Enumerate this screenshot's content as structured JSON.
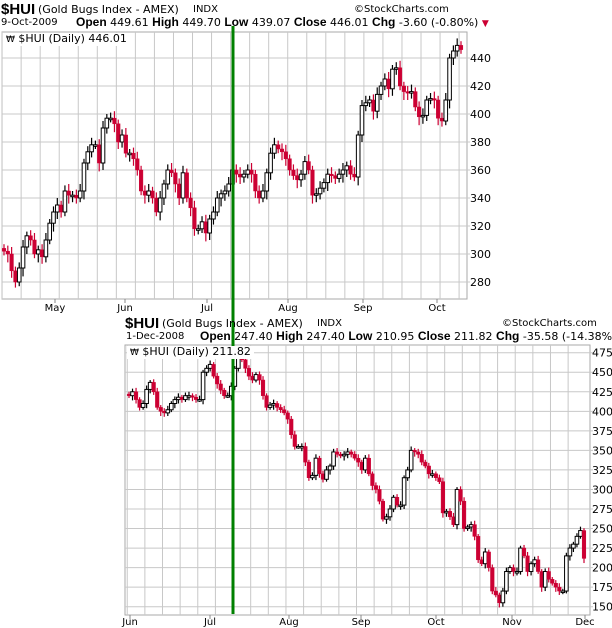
{
  "chart_data": [
    {
      "type": "candlestick",
      "symbol": "$HUI",
      "name": "(Gold Bugs Index - AMEX)",
      "exchange": "INDX",
      "copyright": "©StockCharts.com",
      "date": "9-Oct-2009",
      "quote": {
        "open_label": "Open",
        "open": "449.61",
        "high_label": "High",
        "high": "449.70",
        "low_label": "Low",
        "low": "439.07",
        "close_label": "Close",
        "close": "446.01",
        "chg_label": "Chg",
        "chg": "-3.60 (-0.80%)"
      },
      "legend": "$HUI (Daily) 446.01",
      "x_tick_labels": [
        "May",
        "Jun",
        "Jul",
        "Aug",
        "Sep",
        "Oct"
      ],
      "y_ticks": [
        280,
        300,
        320,
        340,
        360,
        380,
        400,
        420,
        440
      ],
      "ylim": [
        270,
        460
      ],
      "grid": true,
      "closes": [
        302,
        300,
        288,
        280,
        290,
        305,
        313,
        310,
        300,
        303,
        298,
        310,
        322,
        330,
        335,
        330,
        345,
        342,
        342,
        340,
        345,
        365,
        373,
        378,
        378,
        365,
        390,
        397,
        397,
        393,
        380,
        385,
        372,
        372,
        368,
        360,
        345,
        342,
        345,
        340,
        330,
        340,
        350,
        360,
        358,
        350,
        340,
        358,
        340,
        333,
        318,
        318,
        323,
        315,
        325,
        330,
        340,
        343,
        345,
        350,
        360,
        357,
        355,
        357,
        360,
        357,
        345,
        340,
        345,
        358,
        372,
        378,
        375,
        373,
        368,
        360,
        356,
        353,
        357,
        366,
        360,
        342,
        343,
        347,
        351,
        357,
        356,
        354,
        357,
        360,
        363,
        357,
        355,
        385,
        406,
        408,
        410,
        402,
        414,
        420,
        425,
        418,
        432,
        433,
        420,
        416,
        415,
        416,
        405,
        398,
        399,
        410,
        411,
        410,
        397,
        395,
        410,
        440,
        445,
        449,
        446
      ]
    },
    {
      "type": "candlestick",
      "symbol": "$HUI",
      "name": "(Gold Bugs Index - AMEX)",
      "exchange": "INDX",
      "copyright": "©StockCharts.com",
      "date": "1-Dec-2008",
      "quote": {
        "open_label": "Open",
        "open": "247.40",
        "high_label": "High",
        "high": "247.40",
        "low_label": "Low",
        "low": "210.95",
        "close_label": "Close",
        "close": "211.82",
        "chg_label": "Chg",
        "chg": "-35.58 (-14.38%)"
      },
      "legend": "$HUI (Daily) 211.82",
      "x_tick_labels": [
        "Jun",
        "Jul",
        "Aug",
        "Sep",
        "Oct",
        "Nov",
        "Dec"
      ],
      "y_ticks": [
        150,
        175,
        200,
        225,
        250,
        275,
        300,
        325,
        350,
        375,
        400,
        425,
        450,
        475
      ],
      "ylim": [
        140,
        485
      ],
      "grid": true,
      "closes": [
        420,
        425,
        415,
        405,
        410,
        428,
        437,
        425,
        405,
        400,
        398,
        402,
        410,
        415,
        418,
        415,
        420,
        420,
        418,
        415,
        415,
        450,
        455,
        460,
        445,
        435,
        427,
        420,
        420,
        432,
        455,
        470,
        466,
        455,
        445,
        440,
        447,
        440,
        420,
        405,
        408,
        410,
        405,
        402,
        398,
        390,
        370,
        355,
        355,
        355,
        335,
        315,
        318,
        340,
        320,
        313,
        325,
        330,
        348,
        345,
        343,
        345,
        348,
        345,
        340,
        335,
        325,
        340,
        320,
        305,
        300,
        285,
        262,
        265,
        275,
        290,
        280,
        280,
        315,
        325,
        350,
        348,
        345,
        335,
        330,
        320,
        320,
        315,
        310,
        270,
        272,
        265,
        255,
        300,
        285,
        250,
        252,
        255,
        240,
        210,
        205,
        220,
        200,
        170,
        165,
        155,
        170,
        195,
        200,
        195,
        195,
        225,
        215,
        195,
        205,
        210,
        195,
        175,
        195,
        185,
        180,
        175,
        170,
        170,
        215,
        225,
        230,
        240,
        247.4,
        211.82
      ]
    }
  ],
  "colors": {
    "up": "#000000",
    "down": "#cc0033",
    "marker_line": "#008000",
    "grid": "#c8c8c8"
  },
  "icons": {
    "legend": "candlestick-icon",
    "change": "triangle-down-icon"
  }
}
